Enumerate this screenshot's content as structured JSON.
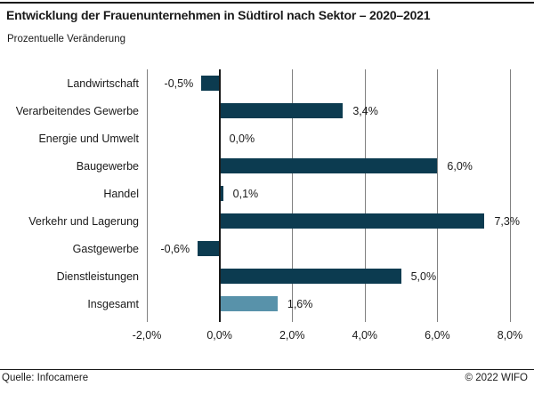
{
  "header": {
    "title": "Entwicklung der Frauenunternehmen in Südtirol nach Sektor – 2020–2021",
    "subtitle": "Prozentuelle Veränderung"
  },
  "footer": {
    "source": "Quelle: Infocamere",
    "copyright": "© 2022 WIFO"
  },
  "colors": {
    "bar": "#0c3b50",
    "bar_highlight": "#5892aa",
    "grid": "#808080",
    "axis": "#1a1a1a",
    "text": "#1a1a1a"
  },
  "chart_data": {
    "type": "bar",
    "orientation": "horizontal",
    "title": "Entwicklung der Frauenunternehmen in Südtirol nach Sektor – 2020–2021",
    "subtitle": "Prozentuelle Veränderung",
    "categories": [
      "Landwirtschaft",
      "Verarbeitendes Gewerbe",
      "Energie und Umwelt",
      "Baugewerbe",
      "Handel",
      "Verkehr und Lagerung",
      "Gastgewerbe",
      "Dienstleistungen",
      "Insgesamt"
    ],
    "values": [
      -0.5,
      3.4,
      0.0,
      6.0,
      0.1,
      7.3,
      -0.6,
      5.0,
      1.6
    ],
    "value_labels": [
      "-0,5%",
      "3,4%",
      "0,0%",
      "6,0%",
      "0,1%",
      "7,3%",
      "-0,6%",
      "5,0%",
      "1,6%"
    ],
    "highlight_index": 8,
    "xlim": [
      -2,
      8
    ],
    "x_ticks": [
      -2,
      0,
      2,
      4,
      6,
      8
    ],
    "x_tick_labels": [
      "-2,0%",
      "0,0%",
      "2,0%",
      "4,0%",
      "6,0%",
      "8,0%"
    ],
    "grid": true,
    "legend": false,
    "xlabel": "",
    "ylabel": ""
  }
}
